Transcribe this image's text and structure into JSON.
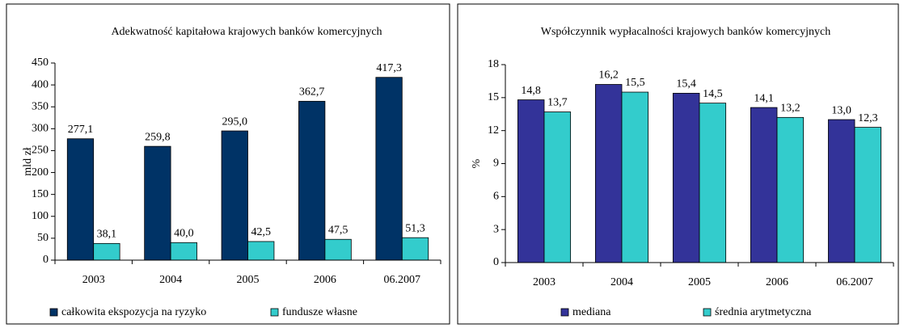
{
  "chart_data": [
    {
      "type": "bar",
      "title": "Adekwatność kapitałowa krajowych banków komercyjnych",
      "y_label": "mld zł",
      "categories": [
        "2003",
        "2004",
        "2005",
        "2006",
        "06.2007"
      ],
      "series": [
        {
          "name": "całkowita ekspozycja na ryzyko",
          "color": "#003366",
          "values": [
            277.1,
            259.8,
            295.0,
            362.7,
            417.3
          ],
          "value_labels": [
            "277,1",
            "259,8",
            "295,0",
            "362,7",
            "417,3"
          ]
        },
        {
          "name": "fundusze własne",
          "color": "#33CCCC",
          "values": [
            38.1,
            40.0,
            42.5,
            47.5,
            51.3
          ],
          "value_labels": [
            "38,1",
            "40,0",
            "42,5",
            "47,5",
            "51,3"
          ]
        }
      ],
      "ylim": [
        0,
        450
      ],
      "yticks": [
        0,
        50,
        100,
        150,
        200,
        250,
        300,
        350,
        400,
        450
      ]
    },
    {
      "type": "bar",
      "title": "Współczynnik wypłacalności krajowych banków komercyjnych",
      "y_label": "%",
      "categories": [
        "2003",
        "2004",
        "2005",
        "2006",
        "06.2007"
      ],
      "series": [
        {
          "name": "mediana",
          "color": "#333399",
          "values": [
            14.8,
            16.2,
            15.4,
            14.1,
            13.0
          ],
          "value_labels": [
            "14,8",
            "16,2",
            "15,4",
            "14,1",
            "13,0"
          ]
        },
        {
          "name": "średnia arytmetyczna",
          "color": "#33CCCC",
          "values": [
            13.7,
            15.5,
            14.5,
            13.2,
            12.3
          ],
          "value_labels": [
            "13,7",
            "15,5",
            "14,5",
            "13,2",
            "12,3"
          ]
        }
      ],
      "ylim": [
        0,
        18
      ],
      "yticks": [
        0,
        3,
        6,
        9,
        12,
        15,
        18
      ]
    }
  ]
}
